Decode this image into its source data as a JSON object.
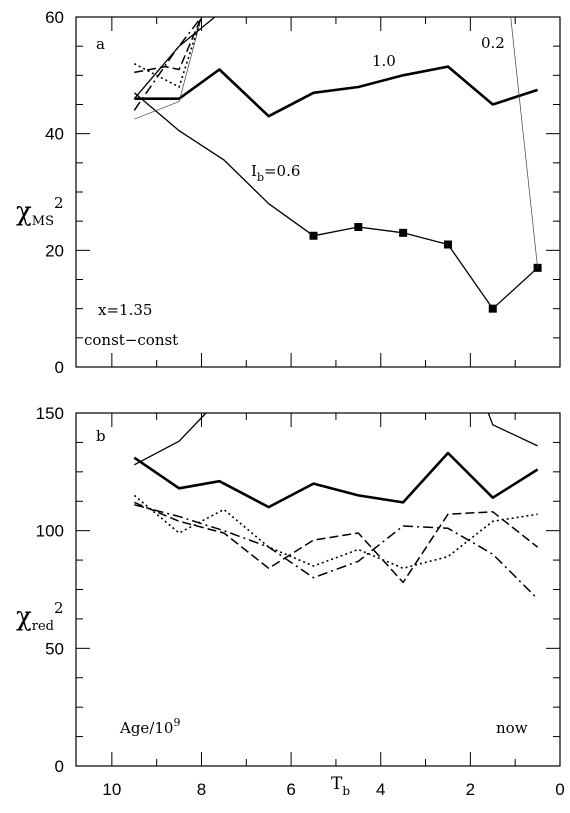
{
  "chart_data": [
    {
      "panel": "a",
      "type": "line",
      "xlim": [
        10.8,
        0
      ],
      "ylim": [
        0,
        60
      ],
      "xticks": [
        10,
        8,
        6,
        4,
        2,
        0
      ],
      "yticks": [
        0,
        20,
        40,
        60
      ],
      "ylabel": {
        "sym": "χ",
        "sub": "MS",
        "sup": "2"
      },
      "panel_label": "a",
      "annotations": {
        "x_label": "x=1.35",
        "const_label": "const−const",
        "label_10": "1.0",
        "label_02": "0.2",
        "label_06_prefix": "I",
        "label_06_sub": "b",
        "label_06_suffix": "=0.6"
      },
      "series": [
        {
          "style": "thick",
          "x": [
            9.5,
            8.5,
            7.6,
            6.5,
            5.5,
            4.5,
            3.5,
            2.5,
            1.5,
            0.5
          ],
          "y": [
            46,
            46,
            51,
            43,
            47,
            48,
            50,
            51.5,
            45,
            47.5
          ]
        },
        {
          "style": "thin",
          "markers": true,
          "x": [
            9.5,
            8.5,
            7.5,
            6.5,
            5.5,
            4.5,
            3.5,
            2.5,
            1.5,
            0.5
          ],
          "y": [
            47,
            40.5,
            35.5,
            28,
            22.5,
            24,
            23,
            21,
            10,
            17
          ]
        },
        {
          "style": "hair",
          "x": [
            9.5,
            8.5,
            8.0
          ],
          "y": [
            42.5,
            45.5,
            60
          ]
        },
        {
          "style": "hair",
          "x": [
            1.1,
            0.5
          ],
          "y": [
            60,
            17
          ]
        },
        {
          "style": "dashdot",
          "x": [
            9.5,
            8.6,
            8.0
          ],
          "y": [
            44,
            54,
            60
          ]
        },
        {
          "style": "dashed",
          "x": [
            9.5,
            8.8,
            8.5,
            8.0
          ],
          "y": [
            50.5,
            51.5,
            51,
            60
          ]
        },
        {
          "style": "dotted",
          "x": [
            9.5,
            8.5,
            8.0
          ],
          "y": [
            52,
            48,
            60
          ]
        },
        {
          "style": "thin",
          "x": [
            9.5,
            8.5,
            7.7
          ],
          "y": [
            46,
            55,
            60
          ]
        }
      ]
    },
    {
      "panel": "b",
      "type": "line",
      "xlim": [
        10.8,
        0
      ],
      "ylim": [
        0,
        150
      ],
      "xticks": [
        10,
        8,
        6,
        4,
        2,
        0
      ],
      "yticks": [
        0,
        50,
        100,
        150
      ],
      "ylabel": {
        "sym": "χ",
        "sub": "red",
        "sup": "2"
      },
      "panel_label": "b",
      "xlabel": {
        "sym": "T",
        "sub": "b"
      },
      "annotations": {
        "age_prefix": "Age/10",
        "age_sup": "9",
        "now_label": "now"
      },
      "series": [
        {
          "style": "thick",
          "x": [
            9.5,
            8.5,
            7.6,
            6.5,
            5.5,
            4.5,
            3.5,
            2.5,
            1.5,
            0.5
          ],
          "y": [
            131,
            118,
            121,
            110,
            120,
            115,
            112,
            133,
            114,
            126
          ]
        },
        {
          "style": "thin",
          "x": [
            9.5,
            8.5,
            7.9
          ],
          "y": [
            128,
            138,
            150
          ]
        },
        {
          "style": "thin",
          "x": [
            1.6,
            1.5,
            0.5
          ],
          "y": [
            150,
            145,
            136
          ]
        },
        {
          "style": "dotted",
          "x": [
            9.5,
            8.5,
            7.5,
            6.5,
            5.5,
            4.5,
            3.5,
            2.5,
            1.5,
            0.5
          ],
          "y": [
            115,
            99,
            109,
            93,
            85,
            92,
            84,
            89,
            104,
            107
          ]
        },
        {
          "style": "dashed",
          "x": [
            9.5,
            8.5,
            7.5,
            6.5,
            5.5,
            4.5,
            3.5,
            2.5,
            1.5,
            0.5
          ],
          "y": [
            112,
            104,
            99,
            84,
            96,
            99,
            78,
            107,
            108,
            93
          ]
        },
        {
          "style": "dashdot",
          "x": [
            9.5,
            8.5,
            7.5,
            6.5,
            5.5,
            4.5,
            3.5,
            2.5,
            1.5,
            0.5
          ],
          "y": [
            111,
            106,
            100,
            93,
            80,
            87,
            102,
            101,
            90,
            71
          ]
        }
      ]
    }
  ]
}
